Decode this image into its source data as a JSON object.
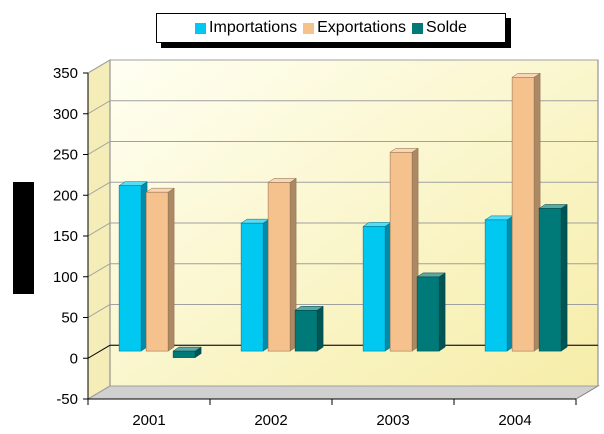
{
  "chart_data": {
    "type": "bar",
    "title": "",
    "xlabel": "",
    "ylabel": "",
    "categories": [
      "2001",
      "2002",
      "2003",
      "2004"
    ],
    "series": [
      {
        "name": "Importations",
        "values": [
          203,
          157,
          153,
          161
        ],
        "color": "#00C8F0"
      },
      {
        "name": "Exportations",
        "values": [
          195,
          207,
          244,
          336
        ],
        "color": "#F5C28E"
      },
      {
        "name": "Solde",
        "values": [
          -8,
          50,
          91,
          175
        ],
        "color": "#007A78"
      }
    ],
    "ylim": [
      -50,
      350
    ],
    "yticks": [
      "-50",
      "0",
      "50",
      "100",
      "150",
      "200",
      "250",
      "300",
      "350"
    ],
    "grid": true,
    "legend": "top",
    "style": "3d-columns",
    "background_gradient": [
      "#FFFFF0",
      "#F8F0B0"
    ]
  }
}
